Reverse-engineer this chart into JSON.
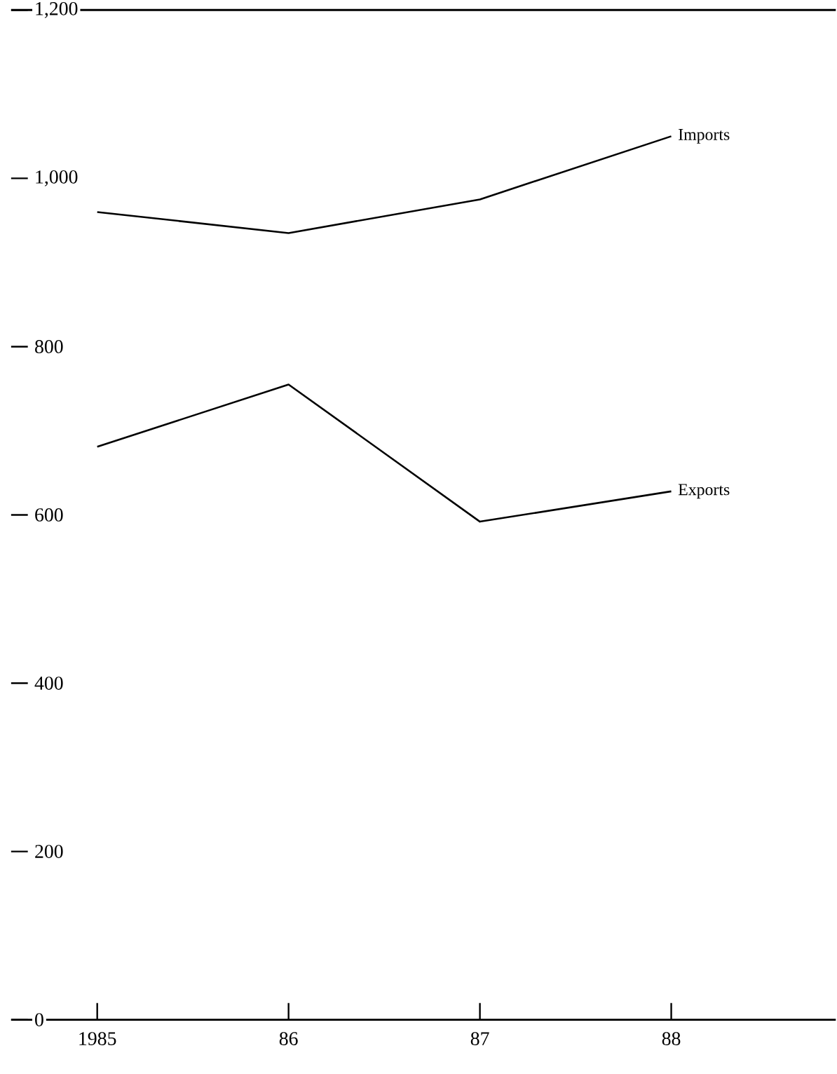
{
  "chart_data": {
    "type": "line",
    "categories": [
      "1985",
      "86",
      "87",
      "88"
    ],
    "series": [
      {
        "name": "Imports",
        "color": "#000000",
        "values": [
          960,
          935,
          975,
          1050
        ]
      },
      {
        "name": "Exports",
        "color": "#000000",
        "values": [
          681,
          755,
          592,
          628
        ]
      }
    ],
    "ylim": [
      0,
      1200
    ],
    "yticks": [
      0,
      200,
      400,
      600,
      800,
      {
        "value": 1000,
        "label": "1,000"
      },
      {
        "value": 1200,
        "label": "1,200"
      }
    ],
    "marker": "none",
    "line_style": "solid"
  }
}
